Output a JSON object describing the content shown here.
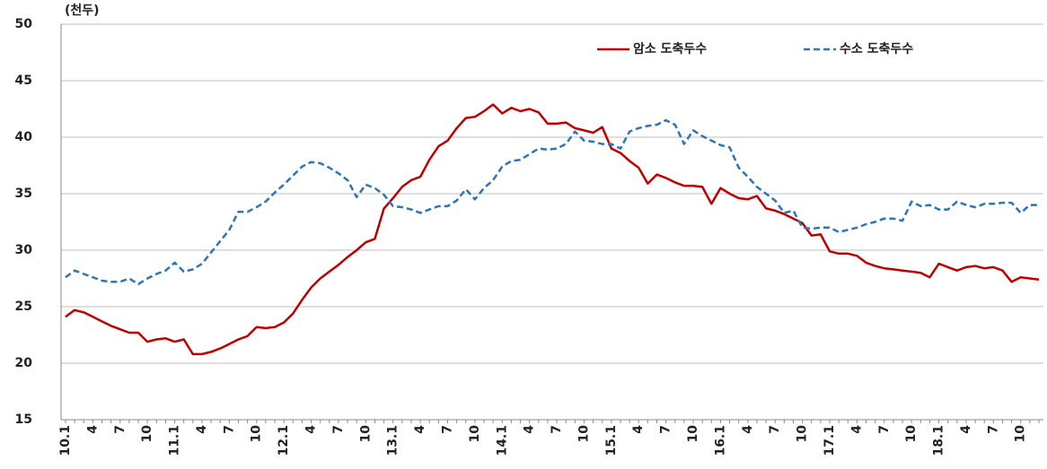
{
  "chart_data": {
    "type": "line",
    "unit_label": "(천두)",
    "categories": [
      "10.1",
      null,
      null,
      "4",
      null,
      null,
      "7",
      null,
      null,
      "10",
      null,
      null,
      "11.1",
      null,
      null,
      "4",
      null,
      null,
      "7",
      null,
      null,
      "10",
      null,
      null,
      "12.1",
      null,
      null,
      "4",
      null,
      null,
      "7",
      null,
      null,
      "10",
      null,
      null,
      "13.1",
      null,
      null,
      "4",
      null,
      null,
      "7",
      null,
      null,
      "10",
      null,
      null,
      "14.1",
      null,
      null,
      "4",
      null,
      null,
      "7",
      null,
      null,
      "10",
      null,
      null,
      "15.1",
      null,
      null,
      "4",
      null,
      null,
      "7",
      null,
      null,
      "10",
      null,
      null,
      "16.1",
      null,
      null,
      "4",
      null,
      null,
      "7",
      null,
      null,
      "10",
      null,
      null,
      "17.1",
      null,
      null,
      "4",
      null,
      null,
      "7",
      null,
      null,
      "10",
      null,
      null,
      "18.1",
      null,
      null,
      "4",
      null,
      null,
      "7",
      null,
      null,
      "10",
      null,
      null
    ],
    "series": [
      {
        "name": "암소 도축두수",
        "color": "#c00000",
        "dashed": false,
        "values": [
          24.1,
          24.7,
          24.5,
          24.1,
          23.7,
          23.3,
          23.0,
          22.7,
          22.7,
          21.9,
          22.1,
          22.2,
          21.9,
          22.1,
          20.8,
          20.8,
          21.0,
          21.3,
          21.7,
          22.1,
          22.4,
          23.2,
          23.1,
          23.2,
          23.6,
          24.4,
          25.6,
          26.7,
          27.5,
          28.1,
          28.7,
          29.4,
          30.0,
          30.7,
          31.0,
          33.7,
          34.6,
          35.6,
          36.2,
          36.5,
          38.0,
          39.2,
          39.7,
          40.8,
          41.7,
          41.8,
          42.3,
          42.9,
          42.1,
          42.6,
          42.3,
          42.5,
          42.2,
          41.2,
          41.2,
          41.3,
          40.8,
          40.6,
          40.4,
          40.9,
          39.0,
          38.6,
          37.9,
          37.3,
          35.9,
          36.7,
          36.4,
          36.0,
          35.7,
          35.7,
          35.6,
          34.1,
          35.5,
          35.0,
          34.6,
          34.5,
          34.8,
          33.7,
          33.5,
          33.2,
          32.8,
          32.4,
          31.3,
          31.4,
          29.9,
          29.7,
          29.7,
          29.5,
          28.9,
          28.6,
          28.4,
          28.3,
          28.2,
          28.1,
          28.0,
          27.6,
          28.8,
          28.5,
          28.2,
          28.5,
          28.6,
          28.4,
          28.5,
          28.2,
          27.2,
          27.6,
          27.5,
          27.4
        ]
      },
      {
        "name": "수소 도축두수",
        "color": "#2e75b6",
        "dashed": true,
        "values": [
          27.6,
          28.2,
          27.9,
          27.6,
          27.3,
          27.2,
          27.2,
          27.5,
          27.0,
          27.5,
          27.9,
          28.2,
          28.9,
          28.1,
          28.3,
          28.8,
          29.8,
          30.8,
          31.8,
          33.4,
          33.4,
          33.8,
          34.3,
          35.1,
          35.8,
          36.6,
          37.4,
          37.8,
          37.7,
          37.3,
          36.8,
          36.2,
          34.7,
          35.8,
          35.5,
          34.9,
          33.9,
          33.8,
          33.6,
          33.3,
          33.6,
          33.9,
          33.9,
          34.4,
          35.4,
          34.5,
          35.5,
          36.2,
          37.4,
          37.9,
          38.0,
          38.5,
          39.0,
          38.9,
          39.0,
          39.4,
          40.5,
          39.7,
          39.6,
          39.4,
          39.4,
          39.0,
          40.5,
          40.8,
          41.0,
          41.1,
          41.5,
          41.1,
          39.4,
          40.6,
          40.1,
          39.7,
          39.3,
          39.1,
          37.3,
          36.5,
          35.6,
          35.0,
          34.4,
          33.3,
          33.5,
          32.0,
          31.9,
          32.0,
          32.0,
          31.6,
          31.8,
          32.0,
          32.3,
          32.5,
          32.8,
          32.8,
          32.6,
          34.3,
          33.9,
          34.0,
          33.6,
          33.6,
          34.3,
          34.0,
          33.8,
          34.1,
          34.1,
          34.2,
          34.2,
          33.3,
          34.0,
          34.0
        ]
      }
    ],
    "ylim": [
      15,
      50
    ],
    "yticks": [
      15,
      20,
      25,
      30,
      35,
      40,
      45,
      50
    ],
    "grid": true,
    "legend": "top-right"
  }
}
